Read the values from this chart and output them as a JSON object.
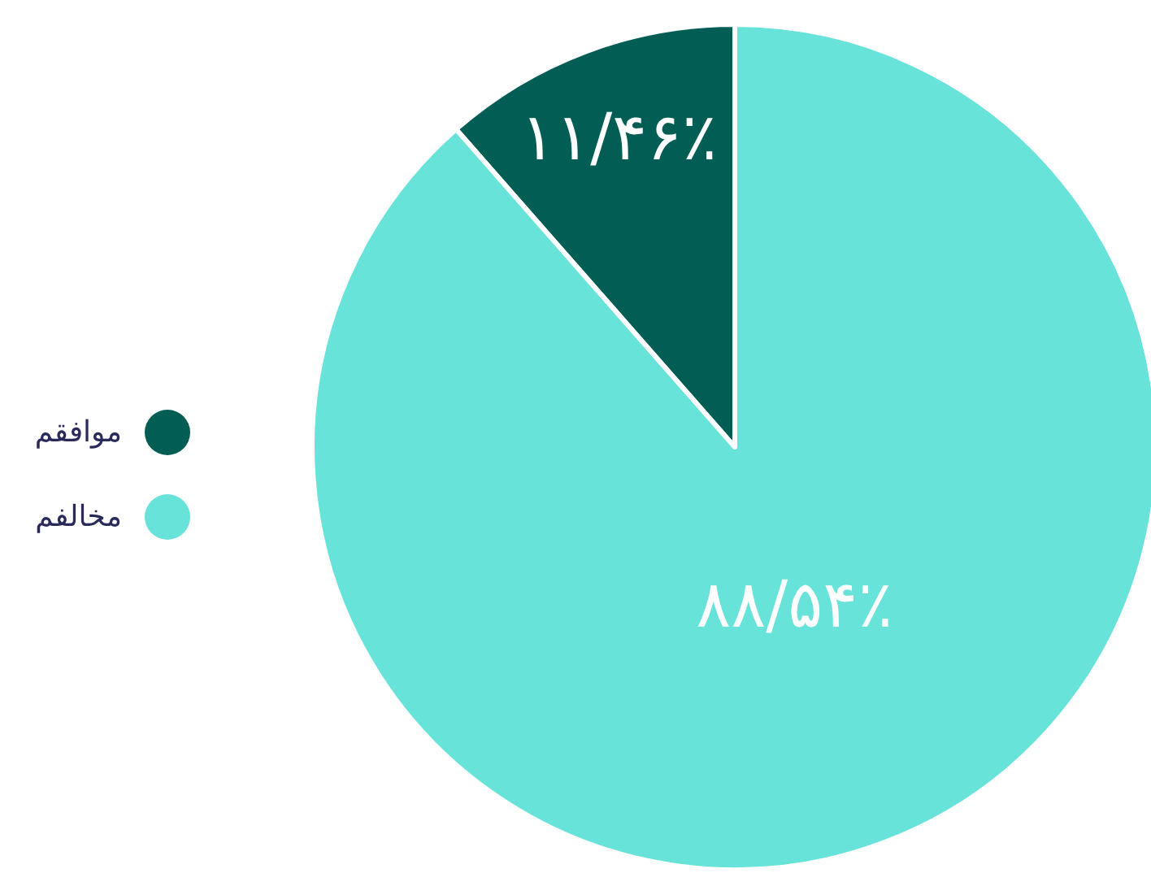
{
  "chart_data": {
    "type": "pie",
    "categories": [
      "موافقم",
      "مخالفم"
    ],
    "values": [
      11.46,
      88.54
    ],
    "colors": [
      "#025e55",
      "#68e3da"
    ],
    "value_labels": [
      "۱۱/۴۶٪",
      "۸۸/۵۴٪"
    ],
    "legend": "left"
  }
}
